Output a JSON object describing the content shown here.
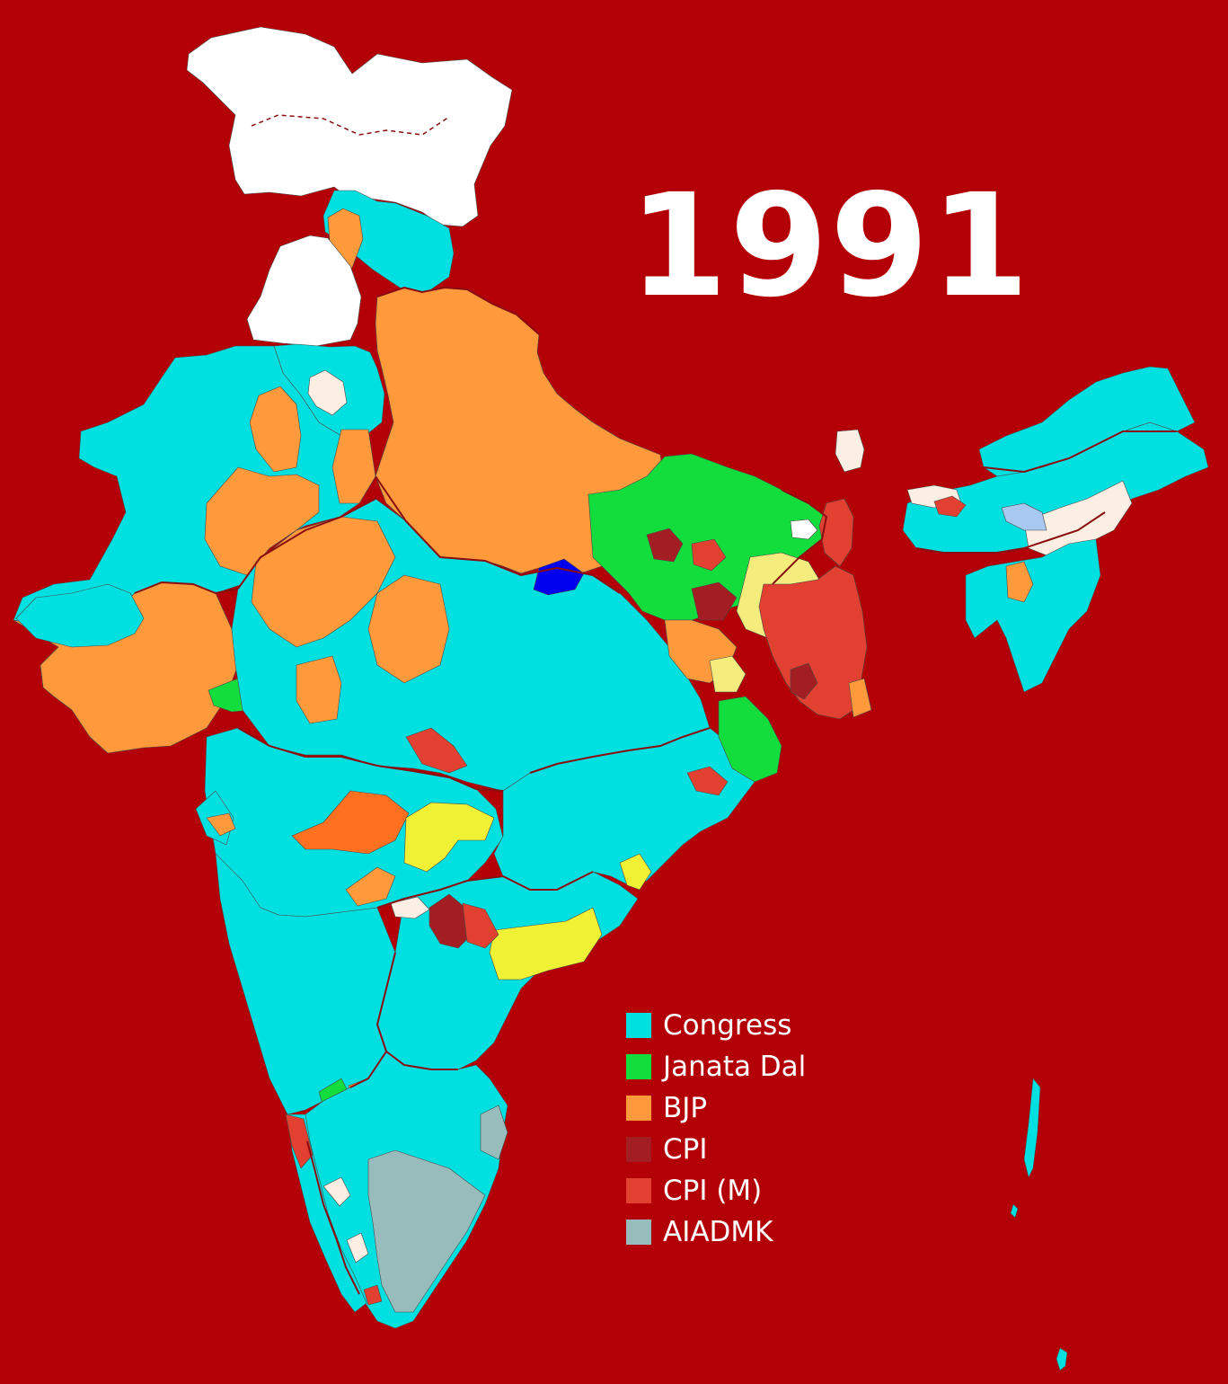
{
  "title": "1991",
  "colors": {
    "background": "#b30006",
    "unshaded": "#ffffff",
    "pale": "#fbeee2",
    "state_border": "#8a0d10",
    "district_border": "#4a4a4a"
  },
  "legend": [
    {
      "label": "Congress",
      "color": "#00e0e0",
      "key": "congress"
    },
    {
      "label": "Janata Dal",
      "color": "#12dd3c",
      "key": "janata_dal"
    },
    {
      "label": "BJP",
      "color": "#ff9a3c",
      "key": "bjp"
    },
    {
      "label": "CPI",
      "color": "#a31e22",
      "key": "cpi"
    },
    {
      "label": "CPI (M)",
      "color": "#e24030",
      "key": "cpim"
    },
    {
      "label": "AIADMK",
      "color": "#98bcbc",
      "key": "aiadmk"
    }
  ],
  "other_party_colors": {
    "tdp": "#f0f034",
    "jmm": "#f5ec7e",
    "bsp": "#0000ee",
    "shiv_sena": "#ff7020",
    "agp": "#a8c8f0"
  }
}
